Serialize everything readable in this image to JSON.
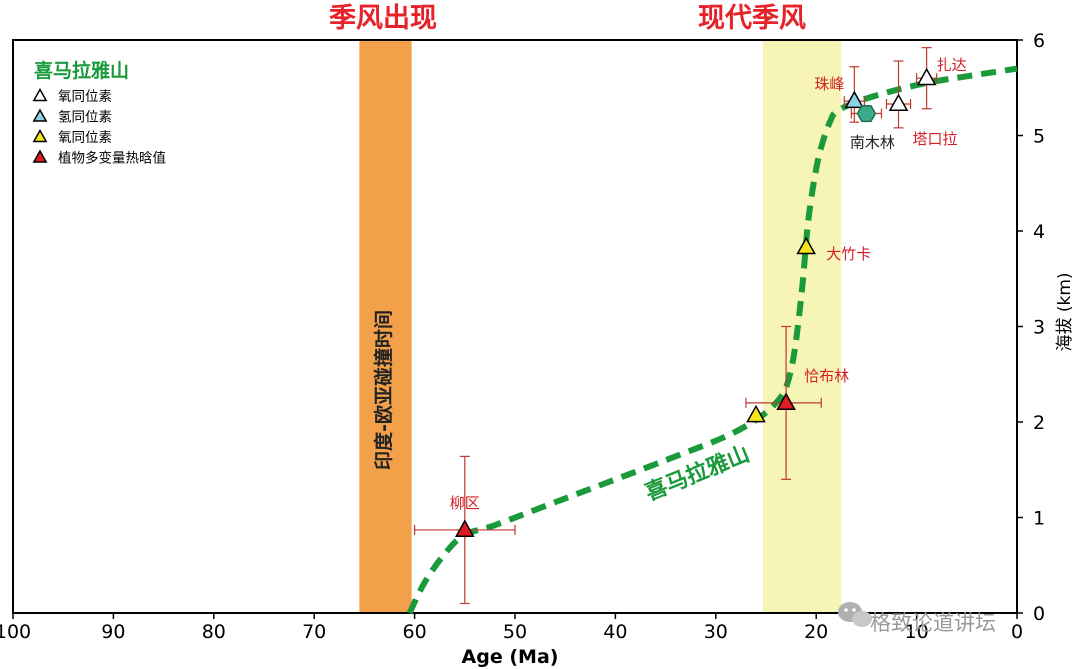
{
  "chart_data": {
    "type": "scatter",
    "xlabel": "Age (Ma)",
    "ylabel": "海拔 (km)",
    "xlim": [
      100,
      0
    ],
    "ylim": [
      0,
      6
    ],
    "x_ticks": [
      100,
      90,
      80,
      70,
      60,
      50,
      40,
      30,
      20,
      10,
      0
    ],
    "y_ticks": [
      0,
      1,
      2,
      3,
      4,
      5,
      6
    ],
    "top_labels": {
      "early": "季风出现",
      "modern": "现代季风"
    },
    "bands": [
      {
        "name": "collision",
        "x_range": [
          65.5,
          60.3
        ],
        "color": "#f2a04a",
        "label": "印度-欧亚碰撞时间"
      },
      {
        "name": "modern",
        "x_range": [
          25.3,
          17.5
        ],
        "color": "#f7f5b6",
        "label": ""
      }
    ],
    "legend": {
      "title": "喜马拉雅山",
      "entries": [
        {
          "marker": "open-triangle",
          "color": "#ffffff",
          "label": "氧同位素"
        },
        {
          "marker": "triangle",
          "color": "#8ecfe0",
          "label": "氢同位素"
        },
        {
          "marker": "triangle",
          "color": "#f2e51c",
          "label": "氧同位素"
        },
        {
          "marker": "triangle",
          "color": "#e01b22",
          "label": "植物多变量热晗值"
        }
      ]
    },
    "curve": {
      "label": "喜马拉雅山",
      "color": "#1a9a3a",
      "x": [
        60.5,
        59,
        57,
        55,
        52,
        45,
        35,
        28,
        24,
        22.5,
        21.5,
        20.8,
        20,
        19.3,
        18.6,
        18,
        16,
        13,
        9,
        5,
        0
      ],
      "y": [
        0,
        0.32,
        0.62,
        0.82,
        0.92,
        1.2,
        1.6,
        1.9,
        2.2,
        2.55,
        3.3,
        4.1,
        4.65,
        4.95,
        5.15,
        5.25,
        5.35,
        5.45,
        5.55,
        5.62,
        5.7
      ]
    },
    "points": [
      {
        "site": "柳区",
        "x": 55,
        "y": 0.87,
        "marker": "triangle",
        "color": "#e01b22",
        "xerr": [
          5,
          5
        ],
        "yerr": [
          0.77,
          0.77
        ],
        "label_color": "red"
      },
      {
        "site": "",
        "x": 26,
        "y": 2.07,
        "marker": "triangle",
        "color": "#f2e51c",
        "xerr": null,
        "yerr": null
      },
      {
        "site": "恰布林",
        "x": 23,
        "y": 2.2,
        "marker": "triangle",
        "color": "#e01b22",
        "xerr": [
          4,
          3.5
        ],
        "yerr": [
          0.8,
          0.8
        ],
        "label_color": "red"
      },
      {
        "site": "大竹卡",
        "x": 21,
        "y": 3.83,
        "marker": "triangle",
        "color": "#f2e51c",
        "xerr": null,
        "yerr": null,
        "label_color": "red"
      },
      {
        "site": "珠峰",
        "x": 16.2,
        "y": 5.36,
        "marker": "triangle",
        "color": "#8ecfe0",
        "xerr": [
          1,
          1
        ],
        "yerr": [
          0.36,
          0.22
        ],
        "label_color": "red"
      },
      {
        "site": "南木林",
        "x": 15,
        "y": 5.23,
        "marker": "hexagon",
        "color": "#3aaa8a",
        "xerr": [
          1.5,
          1.5
        ],
        "yerr": null,
        "label_color": "dark"
      },
      {
        "site": "塔口拉",
        "x": 11.8,
        "y": 5.33,
        "marker": "open-triangle",
        "color": "#ffffff",
        "xerr": [
          1.2,
          1.2
        ],
        "yerr": [
          0.45,
          0.25
        ],
        "label_color": "red"
      },
      {
        "site": "扎达",
        "x": 9,
        "y": 5.6,
        "marker": "open-triangle",
        "color": "#ffffff",
        "xerr": [
          1,
          1
        ],
        "yerr": [
          0.32,
          0.32
        ],
        "label_color": "red"
      }
    ]
  },
  "watermark": "格致论道讲坛"
}
